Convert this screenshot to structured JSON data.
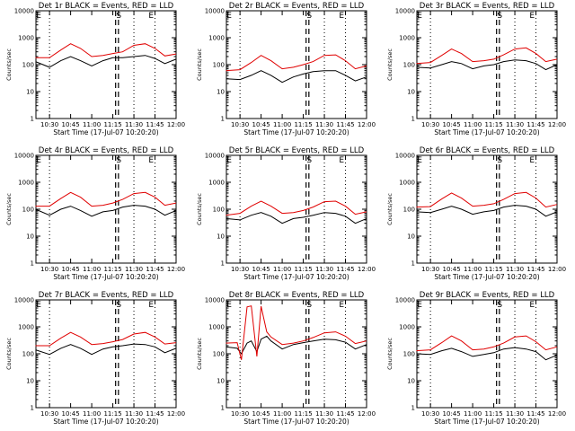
{
  "chart_data": [
    {
      "type": "line",
      "title": "Det 1r BLACK = Events, RED = LLD",
      "ylabel": "Counts/sec",
      "xlabel": "Start Time (17-Jul-07 10:20:20)",
      "xticks": [
        "10:30",
        "10:45",
        "11:00",
        "11:15",
        "11:30",
        "11:45",
        "12:00"
      ],
      "markers": [
        "E",
        "S",
        "E"
      ],
      "ylim": [
        1,
        10000
      ],
      "xlim": [
        "10:20:20",
        "12:00:00"
      ],
      "ylog": true,
      "x": [
        "10:20",
        "10:30",
        "10:38",
        "10:45",
        "10:52",
        "11:00",
        "11:08",
        "11:15",
        "11:22",
        "11:30",
        "11:38",
        "11:45",
        "11:52",
        "12:00"
      ],
      "series": [
        {
          "color": "#000000",
          "values": [
            130,
            80,
            140,
            200,
            140,
            90,
            140,
            180,
            180,
            200,
            220,
            170,
            110,
            160
          ]
        },
        {
          "color": "#e00000",
          "values": [
            180,
            180,
            350,
            600,
            400,
            200,
            220,
            260,
            300,
            520,
            600,
            400,
            210,
            250
          ]
        }
      ]
    },
    {
      "type": "line",
      "title": "Det 2r BLACK = Events, RED = LLD",
      "ylabel": "Counts/sec",
      "xlabel": "Start Time (17-Jul-07 10:20:20)",
      "xticks": [
        "10:30",
        "10:45",
        "11:00",
        "11:15",
        "11:30",
        "11:45",
        "12:00"
      ],
      "markers": [
        "E",
        "S",
        "E"
      ],
      "ylim": [
        1,
        10000
      ],
      "xlim": [
        "10:20:20",
        "12:00:00"
      ],
      "ylog": true,
      "x": [
        "10:20",
        "10:30",
        "10:38",
        "10:45",
        "10:52",
        "11:00",
        "11:08",
        "11:15",
        "11:22",
        "11:30",
        "11:38",
        "11:45",
        "11:52",
        "12:00"
      ],
      "series": [
        {
          "color": "#000000",
          "values": [
            30,
            28,
            40,
            60,
            40,
            22,
            35,
            45,
            55,
            60,
            60,
            40,
            25,
            35
          ]
        },
        {
          "color": "#e00000",
          "values": [
            60,
            65,
            120,
            220,
            140,
            70,
            80,
            100,
            130,
            220,
            230,
            140,
            70,
            90
          ]
        }
      ]
    },
    {
      "type": "line",
      "title": "Det 3r BLACK = Events, RED = LLD",
      "ylabel": "Counts/sec",
      "xlabel": "Start Time (17-Jul-07 10:20:20)",
      "xticks": [
        "10:30",
        "10:45",
        "11:00",
        "11:15",
        "11:30",
        "11:45",
        "12:00"
      ],
      "markers": [
        "E",
        "S",
        "E"
      ],
      "ylim": [
        1,
        10000
      ],
      "xlim": [
        "10:20:20",
        "12:00:00"
      ],
      "ylog": true,
      "x": [
        "10:20",
        "10:30",
        "10:38",
        "10:45",
        "10:52",
        "11:00",
        "11:08",
        "11:15",
        "11:22",
        "11:30",
        "11:38",
        "11:45",
        "11:52",
        "12:00"
      ],
      "series": [
        {
          "color": "#000000",
          "values": [
            80,
            75,
            100,
            130,
            110,
            70,
            90,
            100,
            130,
            150,
            140,
            110,
            65,
            100
          ]
        },
        {
          "color": "#e00000",
          "values": [
            110,
            120,
            220,
            380,
            260,
            130,
            140,
            160,
            230,
            380,
            420,
            260,
            130,
            160
          ]
        }
      ]
    },
    {
      "type": "line",
      "title": "Det 4r BLACK = Events, RED = LLD",
      "ylabel": "Counts/sec",
      "xlabel": "Start Time (17-Jul-07 10:20:20)",
      "xticks": [
        "10:30",
        "10:45",
        "11:00",
        "11:15",
        "11:30",
        "11:45",
        "12:00"
      ],
      "markers": [
        "E",
        "S",
        "E"
      ],
      "ylim": [
        1,
        10000
      ],
      "xlim": [
        "10:20:20",
        "12:00:00"
      ],
      "ylog": true,
      "x": [
        "10:20",
        "10:30",
        "10:38",
        "10:45",
        "10:52",
        "11:00",
        "11:08",
        "11:15",
        "11:22",
        "11:30",
        "11:38",
        "11:45",
        "11:52",
        "12:00"
      ],
      "series": [
        {
          "color": "#000000",
          "values": [
            100,
            60,
            100,
            130,
            90,
            55,
            80,
            90,
            120,
            140,
            130,
            100,
            60,
            90
          ]
        },
        {
          "color": "#e00000",
          "values": [
            130,
            130,
            250,
            420,
            280,
            130,
            140,
            170,
            230,
            380,
            420,
            280,
            140,
            170
          ]
        }
      ]
    },
    {
      "type": "line",
      "title": "Det 5r BLACK = Events, RED = LLD",
      "ylabel": "Counts/sec",
      "xlabel": "Start Time (17-Jul-07 10:20:20)",
      "xticks": [
        "10:30",
        "10:45",
        "11:00",
        "11:15",
        "11:30",
        "11:45",
        "12:00"
      ],
      "markers": [
        "E",
        "S",
        "E"
      ],
      "ylim": [
        1,
        10000
      ],
      "xlim": [
        "10:20:20",
        "12:00:00"
      ],
      "ylog": true,
      "x": [
        "10:20",
        "10:30",
        "10:38",
        "10:45",
        "10:52",
        "11:00",
        "11:08",
        "11:15",
        "11:22",
        "11:30",
        "11:38",
        "11:45",
        "11:52",
        "12:00"
      ],
      "series": [
        {
          "color": "#000000",
          "values": [
            45,
            40,
            60,
            75,
            55,
            30,
            45,
            50,
            60,
            75,
            70,
            55,
            30,
            45
          ]
        },
        {
          "color": "#e00000",
          "values": [
            60,
            70,
            130,
            200,
            130,
            70,
            75,
            90,
            120,
            190,
            200,
            130,
            65,
            80
          ]
        }
      ]
    },
    {
      "type": "line",
      "title": "Det 6r BLACK = Events, RED = LLD",
      "ylabel": "Counts/sec",
      "xlabel": "Start Time (17-Jul-07 10:20:20)",
      "xticks": [
        "10:30",
        "10:45",
        "11:00",
        "11:15",
        "11:30",
        "11:45",
        "12:00"
      ],
      "markers": [
        "E",
        "S",
        "E"
      ],
      "ylim": [
        1,
        10000
      ],
      "xlim": [
        "10:20:20",
        "12:00:00"
      ],
      "ylog": true,
      "x": [
        "10:20",
        "10:30",
        "10:38",
        "10:45",
        "10:52",
        "11:00",
        "11:08",
        "11:15",
        "11:22",
        "11:30",
        "11:38",
        "11:45",
        "11:52",
        "12:00"
      ],
      "series": [
        {
          "color": "#000000",
          "values": [
            80,
            75,
            100,
            130,
            100,
            65,
            80,
            90,
            120,
            140,
            130,
            100,
            55,
            80
          ]
        },
        {
          "color": "#e00000",
          "values": [
            120,
            125,
            240,
            400,
            260,
            130,
            140,
            160,
            230,
            380,
            420,
            260,
            120,
            150
          ]
        }
      ]
    },
    {
      "type": "line",
      "title": "Det 7r BLACK = Events, RED = LLD",
      "ylabel": "Counts/sec",
      "xlabel": "Start Time (17-Jul-07 10:20:20)",
      "xticks": [
        "10:30",
        "10:45",
        "11:00",
        "11:15",
        "11:30",
        "11:45",
        "12:00"
      ],
      "markers": [
        "E",
        "S",
        "E"
      ],
      "ylim": [
        1,
        10000
      ],
      "xlim": [
        "10:20:20",
        "12:00:00"
      ],
      "ylog": true,
      "x": [
        "10:20",
        "10:30",
        "10:38",
        "10:45",
        "10:52",
        "11:00",
        "11:08",
        "11:15",
        "11:22",
        "11:30",
        "11:38",
        "11:45",
        "11:52",
        "12:00"
      ],
      "series": [
        {
          "color": "#000000",
          "values": [
            140,
            95,
            160,
            220,
            160,
            95,
            150,
            180,
            200,
            230,
            220,
            180,
            110,
            160
          ]
        },
        {
          "color": "#e00000",
          "values": [
            200,
            200,
            380,
            620,
            420,
            220,
            240,
            280,
            340,
            540,
            620,
            420,
            230,
            260
          ]
        }
      ]
    },
    {
      "type": "line",
      "title": "Det 8r BLACK = Events, RED = LLD",
      "ylabel": "Counts/sec",
      "xlabel": "Start Time (17-Jul-07 10:20:20)",
      "xticks": [
        "10:30",
        "10:45",
        "11:00",
        "11:15",
        "11:30",
        "11:45",
        "12:00"
      ],
      "markers": [
        "E",
        "S",
        "E"
      ],
      "ylim": [
        1,
        10000
      ],
      "xlim": [
        "10:20:20",
        "12:00:00"
      ],
      "ylog": true,
      "x": [
        "10:20",
        "10:28",
        "10:31",
        "10:35",
        "10:38",
        "10:42",
        "10:45",
        "10:49",
        "10:52",
        "11:00",
        "11:08",
        "11:15",
        "11:22",
        "11:30",
        "11:38",
        "11:45",
        "11:52",
        "12:00"
      ],
      "series": [
        {
          "color": "#000000",
          "values": [
            180,
            160,
            100,
            250,
            300,
            120,
            350,
            450,
            300,
            150,
            220,
            260,
            300,
            350,
            330,
            270,
            150,
            220
          ]
        },
        {
          "color": "#e00000",
          "values": [
            250,
            260,
            60,
            5500,
            6000,
            80,
            5800,
            650,
            420,
            220,
            250,
            300,
            400,
            600,
            650,
            450,
            240,
            300
          ]
        }
      ]
    },
    {
      "type": "line",
      "title": "Det 9r BLACK = Events, RED = LLD",
      "ylabel": "Counts/sec",
      "xlabel": "Start Time (17-Jul-07 10:20:20)",
      "xticks": [
        "10:30",
        "10:45",
        "11:00",
        "11:15",
        "11:30",
        "11:45",
        "12:00"
      ],
      "markers": [
        "E",
        "S",
        "E"
      ],
      "ylim": [
        1,
        10000
      ],
      "xlim": [
        "10:20:20",
        "12:00:00"
      ],
      "ylog": true,
      "x": [
        "10:20",
        "10:30",
        "10:38",
        "10:45",
        "10:52",
        "11:00",
        "11:08",
        "11:15",
        "11:22",
        "11:30",
        "11:38",
        "11:45",
        "11:52",
        "12:00"
      ],
      "series": [
        {
          "color": "#000000",
          "values": [
            100,
            95,
            130,
            160,
            120,
            80,
            95,
            110,
            150,
            170,
            150,
            120,
            60,
            90
          ]
        },
        {
          "color": "#e00000",
          "values": [
            130,
            140,
            260,
            460,
            300,
            140,
            150,
            180,
            250,
            420,
            460,
            280,
            140,
            180
          ]
        }
      ]
    }
  ],
  "yticks": [
    "10000",
    "1000",
    "100",
    "10",
    "1"
  ]
}
